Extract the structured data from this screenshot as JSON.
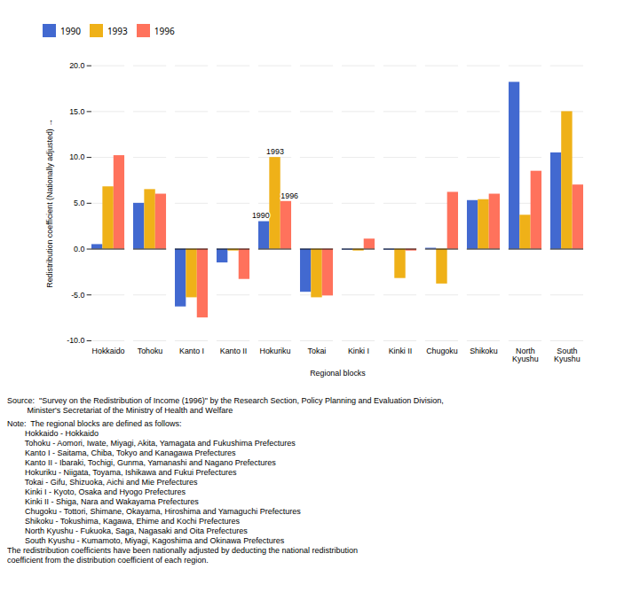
{
  "chart_data": {
    "type": "bar",
    "categories": [
      "Hokkaido",
      "Tohoku",
      "Kanto I",
      "Kanto II",
      "Hokuriku",
      "Tokai",
      "Kinki I",
      "Kinki II",
      "Chugoku",
      "Shikoku",
      "North\nKyushu",
      "South\nKyushu"
    ],
    "series": [
      {
        "name": "1990",
        "values": [
          0.5,
          5.0,
          -6.3,
          -1.5,
          3.0,
          -4.7,
          -0.1,
          -0.1,
          0.1,
          5.3,
          18.2,
          10.5
        ]
      },
      {
        "name": "1993",
        "values": [
          6.8,
          6.5,
          -5.3,
          -0.2,
          10.0,
          -5.3,
          -0.2,
          -3.2,
          -3.8,
          5.4,
          3.7,
          15.0
        ]
      },
      {
        "name": "1996",
        "values": [
          10.2,
          6.0,
          -7.5,
          -3.3,
          5.2,
          -5.1,
          1.1,
          -0.2,
          6.2,
          6.0,
          8.5,
          7.0
        ]
      }
    ],
    "ylim": [
      -10.0,
      20.0
    ],
    "yticks": [
      {
        "value": -10.0,
        "label": "-10.0"
      },
      {
        "value": -5.0,
        "label": "-5.0"
      },
      {
        "value": 0.0,
        "label": "0.0"
      },
      {
        "value": 5.0,
        "label": "5.0"
      },
      {
        "value": 10.0,
        "label": "10.0"
      },
      {
        "value": 15.0,
        "label": "15.0"
      },
      {
        "value": 20.0,
        "label": "20.0"
      }
    ],
    "ylabel": "Redistribution coefficient (Nationally adjusted)",
    "xlabel": "Regional blocks",
    "grid": true,
    "legend": "upper left",
    "annotations": [
      {
        "text": "1993",
        "category": "Hokuriku",
        "series": "1993",
        "value": 10.0
      },
      {
        "text": "1990",
        "category": "Hokuriku",
        "series": "1990",
        "value": 3.0
      },
      {
        "text": "1996",
        "category": "Hokuriku",
        "series": "1996",
        "value": 5.2
      }
    ],
    "source": [
      "Source:  \"Survey on the Redistribution of Income (1996)\" by the Research Section, Policy Planning and Evaluation Division,",
      "         Minister's Secretariat of the Ministry of Health and Welfare"
    ],
    "notes": [
      "Note:  The regional blocks are defined as follows:",
      "        Hokkaido - Hokkaido",
      "        Tohoku - Aomori, Iwate, Miyagi, Akita, Yamagata and Fukushima Prefectures",
      "        Kanto I - Saitama, Chiba, Tokyo and Kanagawa Prefectures",
      "        Kanto II - Ibaraki, Tochigi, Gunma, Yamanashi and Nagano Prefectures",
      "        Hokuriku - Niigata, Toyama, Ishikawa and Fukui Prefectures",
      "        Tokai - Gifu, Shizuoka, Aichi and Mie Prefectures",
      "        Kinki I - Kyoto, Osaka and Hyogo Prefectures",
      "        Kinki II - Shiga, Nara and Wakayama Prefectures",
      "        Chugoku - Tottori, Shimane, Okayama, Hiroshima and Yamaguchi Prefectures",
      "        Shikoku - Tokushima, Kagawa, Ehime and Kochi Prefectures",
      "        North Kyushu - Fukuoka, Saga, Nagasaki and Oita Prefectures",
      "        South Kyushu - Kumamoto, Miyagi, Kagoshima and Okinawa Prefectures",
      "The redistribution coefficients have been nationally adjusted by deducting the national redistribution",
      "coefficient from the distribution coefficient of each region."
    ]
  }
}
